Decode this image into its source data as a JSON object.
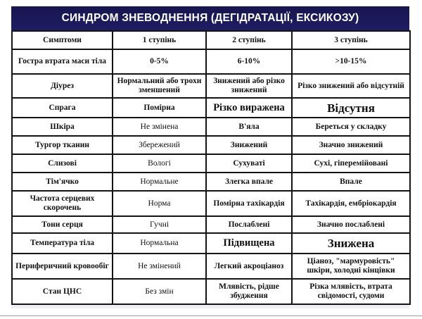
{
  "title": "СИНДРОМ ЗНЕВОДНЕННЯ  (ДЕГІДРАТАЦІЇ, ЕКСИКОЗУ)",
  "columns": [
    "Симптоми",
    "1 ступінь",
    "2 ступінь",
    "3 ступінь"
  ],
  "rows": [
    {
      "symptom": "Гостра втрата маси тіла",
      "d1": "0-5%",
      "d2": "6-10%",
      "d3": ">10-15%"
    },
    {
      "symptom": "Діурез",
      "d1": "Нормальний або трохи зменшений",
      "d2": "Знижений або різко знижений",
      "d3": "Різко знижений або відсутній"
    },
    {
      "symptom": "Спрага",
      "d1": "Помірна",
      "d2": "Різко виражена",
      "d3": "Відсутня"
    },
    {
      "symptom": "Шкіра",
      "d1": "Не змінена",
      "d2": "В'яла",
      "d3": "Береться у складку"
    },
    {
      "symptom": "Тургор тканин",
      "d1": "Збережений",
      "d2": "Знижений",
      "d3": "Значно знижений"
    },
    {
      "symptom": "Слизові",
      "d1": "Вологі",
      "d2": "Сухуваті",
      "d3": "Сухі, гіперемійовані"
    },
    {
      "symptom": "Тім'ячко",
      "d1": "Нормальне",
      "d2": "Злегка впале",
      "d3": "Впале"
    },
    {
      "symptom": "Частота серцевих скорочень",
      "d1": "Норма",
      "d2": "Помірна тахікардія",
      "d3": "Тахікардія, ембріокардія"
    },
    {
      "symptom": "Тони серця",
      "d1": "Гучні",
      "d2": "Послаблені",
      "d3": "Значно послаблені"
    },
    {
      "symptom": "Температура тіла",
      "d1": "Нормальна",
      "d2": "Підвищена",
      "d3": "Знижена"
    },
    {
      "symptom": "Периферичний кровообіг",
      "d1": "Не змінений",
      "d2": "Легкий акроціаноз",
      "d3": "Ціаноз, \"мармуровість\" шкіри, холодні кінцівки"
    },
    {
      "symptom": "Стан ЦНС",
      "d1": "Без змін",
      "d2": "Млявість, рідше збудження",
      "d3": "Різка млявість, втрата свідомості, судоми"
    }
  ]
}
